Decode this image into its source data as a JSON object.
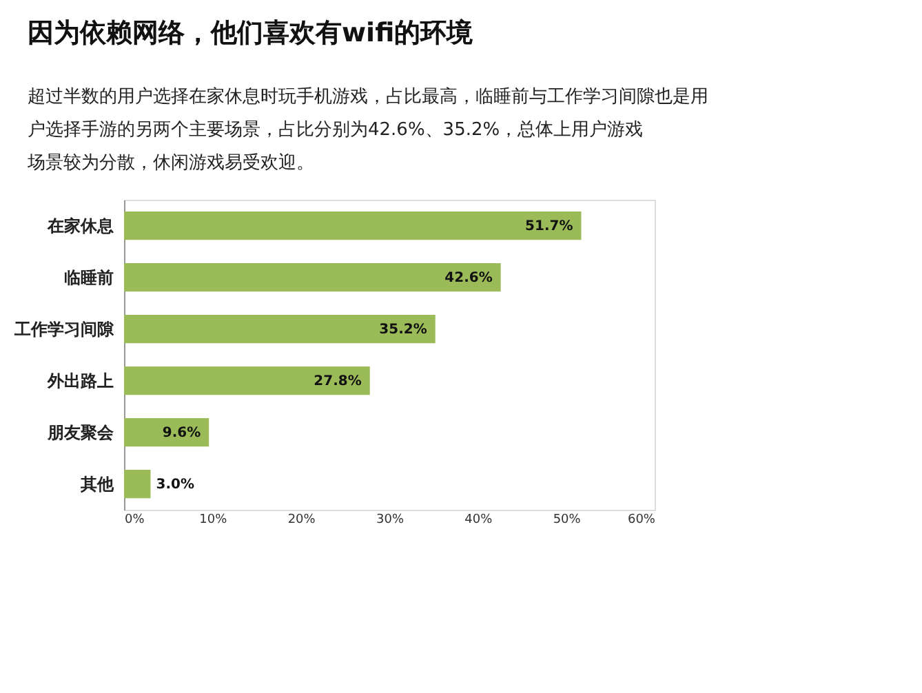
{
  "chart_data": {
    "type": "bar",
    "orientation": "horizontal",
    "title": "因为依赖网络，他们喜欢有wifi的环境",
    "subtitle": "超过半数的用户选择在家休息时玩手机游戏，占比最高，临睡前与工作学习间隙也是用户选择手游的另两个主要场景，占比分别为42.6%、35.2%，总体上用户游戏场景较为分散，休闲游戏易受欢迎。",
    "categories": [
      "在家休息",
      "临睡前",
      "工作学习间隙",
      "外出路上",
      "朋友聚会",
      "其他"
    ],
    "values": [
      51.7,
      42.6,
      35.2,
      27.8,
      9.6,
      3.0
    ],
    "value_labels": [
      "51.7%",
      "42.6%",
      "35.2%",
      "27.8%",
      "9.6%",
      "3.0%"
    ],
    "color": "#9bbb59",
    "xlim": [
      0,
      60
    ],
    "xticks": [
      {
        "value": 0,
        "label": "0%"
      },
      {
        "value": 10,
        "label": "10%"
      },
      {
        "value": 20,
        "label": "20%"
      },
      {
        "value": 30,
        "label": "30%"
      },
      {
        "value": 40,
        "label": "40%"
      },
      {
        "value": 50,
        "label": "50%"
      },
      {
        "value": 60,
        "label": "60%"
      }
    ],
    "grid": false
  }
}
